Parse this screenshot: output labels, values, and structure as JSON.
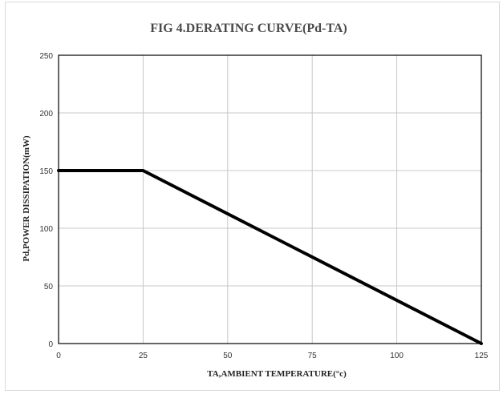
{
  "chart_data": {
    "type": "line",
    "title": "FIG 4.DERATING  CURVE(Pd-TA)",
    "xlabel": "TA,AMBIENT  TEMPERATURE(°c)",
    "ylabel": "Pd,POWER DISSIPATION(mW)",
    "xlim": [
      0,
      125
    ],
    "ylim": [
      0,
      250
    ],
    "x_ticks": [
      "0",
      "25",
      "50",
      "75",
      "100",
      "125"
    ],
    "y_ticks": [
      "0",
      "50",
      "100",
      "150",
      "200",
      "250"
    ],
    "grid": true,
    "legend": "none",
    "series": [
      {
        "x": [
          0,
          25,
          125
        ],
        "y": [
          150,
          150,
          0
        ],
        "color": "#000000"
      }
    ]
  }
}
